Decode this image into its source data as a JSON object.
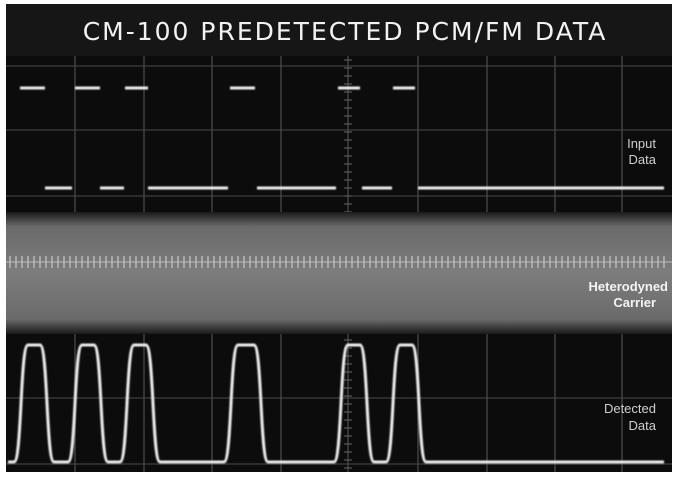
{
  "title": "CM-100 PREDETECTED PCM/FM DATA",
  "labels": [
    {
      "lines": [
        "Input",
        "Data"
      ]
    },
    {
      "lines": [
        "Heterodyned",
        "Carrier"
      ]
    },
    {
      "lines": [
        "Detected",
        "Data"
      ]
    }
  ]
}
